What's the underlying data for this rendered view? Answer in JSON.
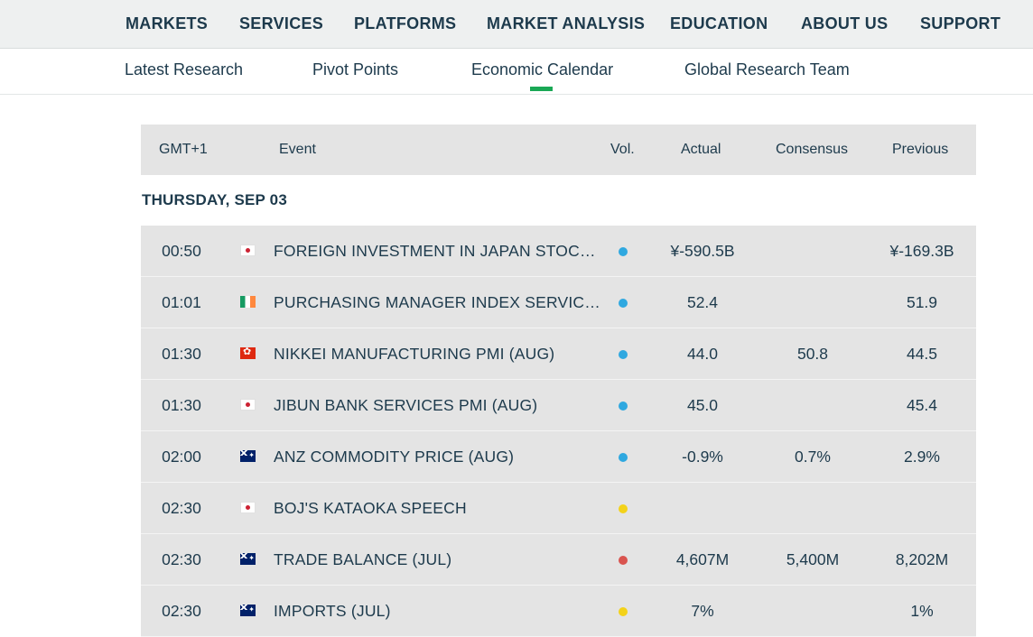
{
  "top_nav": [
    "MARKETS",
    "SERVICES",
    "PLATFORMS",
    "MARKET ANALYSIS",
    "EDUCATION",
    "ABOUT US",
    "SUPPORT"
  ],
  "sub_nav": {
    "items": [
      "Latest Research",
      "Pivot Points",
      "Economic Calendar",
      "Global Research Team"
    ],
    "active": "Economic Calendar"
  },
  "table": {
    "headers": {
      "time": "GMT+1",
      "event": "Event",
      "vol": "Vol.",
      "actual": "Actual",
      "consensus": "Consensus",
      "previous": "Previous"
    },
    "date_label": "THURSDAY, SEP 03",
    "rows": [
      {
        "time": "00:50",
        "flag": "japan-flag-icon",
        "event": "FOREIGN INVESTMENT IN JAPAN STOCKS ...",
        "vol": "blue-dot",
        "actual": "¥-590.5B",
        "consensus": "",
        "previous": "¥-169.3B"
      },
      {
        "time": "01:01",
        "flag": "ireland-flag-icon",
        "event": "PURCHASING MANAGER INDEX SERVICES...",
        "vol": "blue-dot",
        "actual": "52.4",
        "consensus": "",
        "previous": "51.9"
      },
      {
        "time": "01:30",
        "flag": "hong-kong-flag-icon",
        "event": "NIKKEI MANUFACTURING PMI (AUG)",
        "vol": "blue-dot",
        "actual": "44.0",
        "consensus": "50.8",
        "previous": "44.5"
      },
      {
        "time": "01:30",
        "flag": "japan-flag-icon",
        "event": "JIBUN BANK SERVICES PMI (AUG)",
        "vol": "blue-dot",
        "actual": "45.0",
        "consensus": "",
        "previous": "45.4"
      },
      {
        "time": "02:00",
        "flag": "australia-flag-icon",
        "event": "ANZ COMMODITY PRICE (AUG)",
        "vol": "blue-dot",
        "actual": "-0.9%",
        "consensus": "0.7%",
        "previous": "2.9%"
      },
      {
        "time": "02:30",
        "flag": "japan-flag-icon",
        "event": "BOJ'S KATAOKA SPEECH",
        "vol": "yellow-dot",
        "actual": "",
        "consensus": "",
        "previous": ""
      },
      {
        "time": "02:30",
        "flag": "australia-flag-icon",
        "event": "TRADE BALANCE (JUL)",
        "vol": "red-dot",
        "actual": "4,607M",
        "consensus": "5,400M",
        "previous": "8,202M"
      },
      {
        "time": "02:30",
        "flag": "australia-flag-icon",
        "event": "IMPORTS (JUL)",
        "vol": "yellow-dot",
        "actual": "7%",
        "consensus": "",
        "previous": "1%"
      }
    ]
  },
  "colors": {
    "text": "#1d3a4c",
    "accent_underline": "#1aa855",
    "vol_low": "#2fa8e0",
    "vol_medium": "#f3d21a",
    "vol_high": "#d9544f",
    "row_bg": "#e4e4e4",
    "topnav_bg": "#eef0f0"
  }
}
